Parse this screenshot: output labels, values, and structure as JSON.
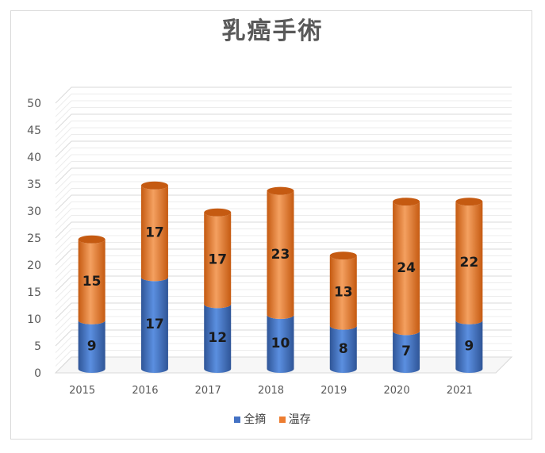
{
  "chart_data": {
    "type": "bar",
    "stacked": true,
    "title": "乳癌手術",
    "categories": [
      "2015",
      "2016",
      "2017",
      "2018",
      "2019",
      "2020",
      "2021"
    ],
    "series": [
      {
        "name": "全摘",
        "color": "#4472c4",
        "values": [
          9,
          17,
          12,
          10,
          8,
          7,
          9
        ]
      },
      {
        "name": "温存",
        "color": "#ed7d31",
        "values": [
          15,
          17,
          17,
          23,
          13,
          24,
          22
        ]
      }
    ],
    "ylim": [
      0,
      50
    ],
    "yticks": [
      "0",
      "5",
      "10",
      "15",
      "20",
      "25",
      "30",
      "35",
      "40",
      "45",
      "50"
    ],
    "grid": true,
    "legend": "bottom"
  }
}
